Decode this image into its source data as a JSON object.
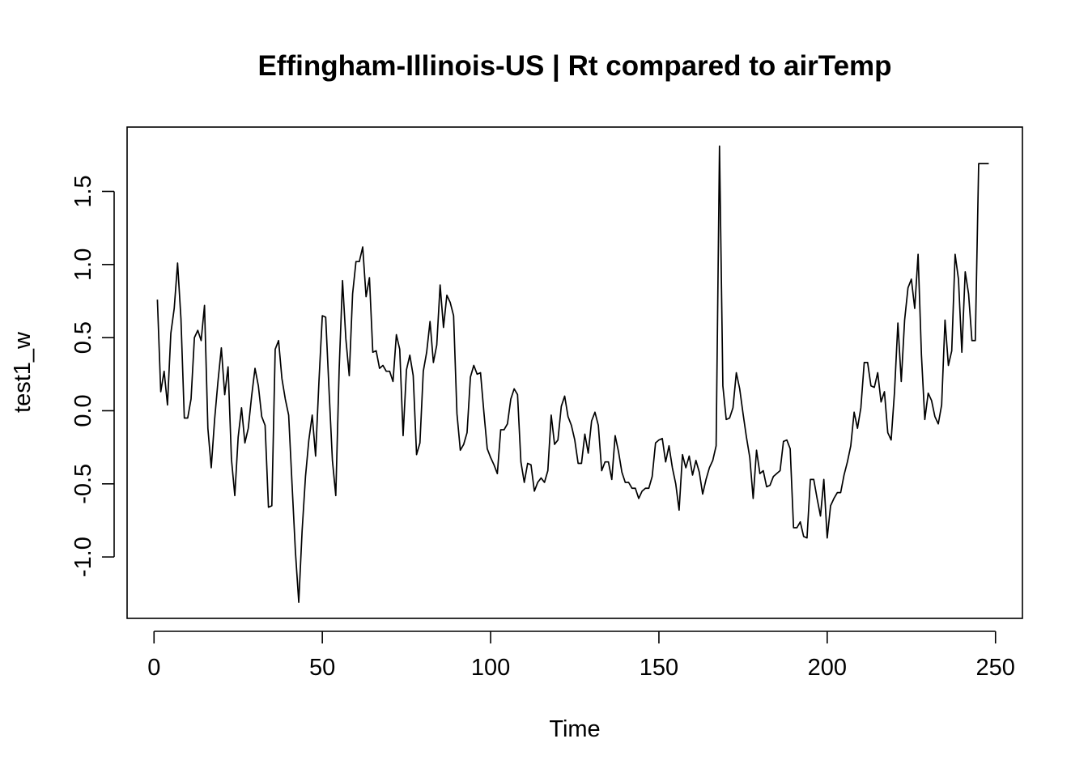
{
  "chart_data": {
    "type": "line",
    "title": "Effingham-Illinois-US | Rt compared to airTemp",
    "xlabel": "Time",
    "ylabel": "test1_w",
    "xlim": [
      -8,
      258
    ],
    "ylim": [
      -1.42,
      1.94
    ],
    "x_ticks": [
      0,
      50,
      100,
      150,
      200,
      250
    ],
    "y_ticks": [
      -1.0,
      -0.5,
      0.0,
      0.5,
      1.0,
      1.5
    ],
    "x_tick_labels": [
      "0",
      "50",
      "100",
      "150",
      "200",
      "250"
    ],
    "y_tick_labels": [
      "-1.0",
      "-0.5",
      "0.0",
      "0.5",
      "1.0",
      "1.5"
    ],
    "grid": false,
    "series": [
      {
        "x_start": 1,
        "values": [
          0.76,
          0.13,
          0.27,
          0.04,
          0.53,
          0.7,
          1.01,
          0.63,
          -0.05,
          -0.05,
          0.08,
          0.5,
          0.55,
          0.48,
          0.72,
          -0.12,
          -0.39,
          -0.06,
          0.2,
          0.43,
          0.11,
          0.3,
          -0.33,
          -0.58,
          -0.18,
          0.02,
          -0.22,
          -0.12,
          0.1,
          0.29,
          0.17,
          -0.04,
          -0.1,
          -0.66,
          -0.65,
          0.42,
          0.48,
          0.22,
          0.08,
          -0.03,
          -0.5,
          -0.96,
          -1.31,
          -0.82,
          -0.45,
          -0.2,
          -0.03,
          -0.31,
          0.2,
          0.65,
          0.64,
          0.14,
          -0.34,
          -0.58,
          0.28,
          0.89,
          0.49,
          0.24,
          0.8,
          1.02,
          1.02,
          1.12,
          0.78,
          0.91,
          0.4,
          0.41,
          0.29,
          0.31,
          0.27,
          0.27,
          0.2,
          0.52,
          0.42,
          -0.17,
          0.28,
          0.38,
          0.24,
          -0.3,
          -0.22,
          0.27,
          0.4,
          0.61,
          0.33,
          0.45,
          0.86,
          0.57,
          0.79,
          0.74,
          0.65,
          -0.02,
          -0.27,
          -0.23,
          -0.15,
          0.23,
          0.31,
          0.25,
          0.26,
          -0.01,
          -0.26,
          -0.32,
          -0.37,
          -0.43,
          -0.13,
          -0.13,
          -0.09,
          0.08,
          0.15,
          0.11,
          -0.35,
          -0.49,
          -0.36,
          -0.37,
          -0.55,
          -0.49,
          -0.46,
          -0.49,
          -0.41,
          -0.03,
          -0.23,
          -0.2,
          0.03,
          0.1,
          -0.04,
          -0.1,
          -0.2,
          -0.36,
          -0.36,
          -0.16,
          -0.29,
          -0.07,
          -0.01,
          -0.1,
          -0.41,
          -0.35,
          -0.35,
          -0.47,
          -0.17,
          -0.28,
          -0.42,
          -0.49,
          -0.49,
          -0.53,
          -0.53,
          -0.6,
          -0.55,
          -0.53,
          -0.53,
          -0.45,
          -0.22,
          -0.2,
          -0.19,
          -0.35,
          -0.24,
          -0.39,
          -0.5,
          -0.68,
          -0.3,
          -0.39,
          -0.31,
          -0.44,
          -0.34,
          -0.42,
          -0.57,
          -0.47,
          -0.39,
          -0.34,
          -0.24,
          1.81,
          0.17,
          -0.06,
          -0.05,
          0.02,
          0.26,
          0.15,
          -0.02,
          -0.18,
          -0.32,
          -0.6,
          -0.27,
          -0.43,
          -0.41,
          -0.52,
          -0.51,
          -0.45,
          -0.43,
          -0.41,
          -0.21,
          -0.2,
          -0.26,
          -0.8,
          -0.8,
          -0.76,
          -0.86,
          -0.87,
          -0.47,
          -0.47,
          -0.6,
          -0.72,
          -0.47,
          -0.87,
          -0.65,
          -0.6,
          -0.56,
          -0.56,
          -0.44,
          -0.35,
          -0.24,
          -0.01,
          -0.12,
          0.02,
          0.33,
          0.33,
          0.17,
          0.16,
          0.26,
          0.06,
          0.13,
          -0.15,
          -0.2,
          0.13,
          0.6,
          0.2,
          0.62,
          0.84,
          0.9,
          0.7,
          1.07,
          0.38,
          -0.06,
          0.12,
          0.07,
          -0.04,
          -0.09,
          0.04,
          0.62,
          0.31,
          0.41,
          1.07,
          0.9,
          0.4,
          0.95,
          0.8,
          0.48,
          0.48,
          1.69,
          1.69,
          1.69,
          1.69
        ]
      }
    ]
  }
}
